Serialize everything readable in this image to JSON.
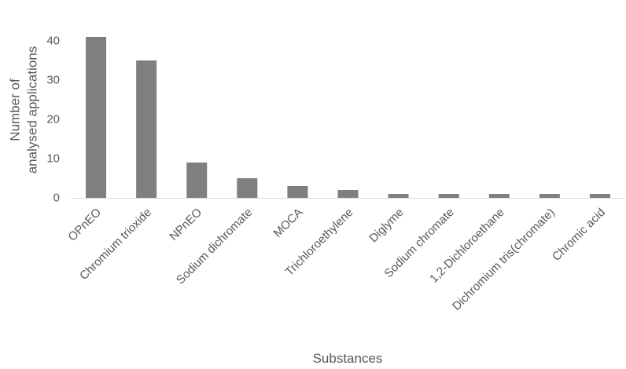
{
  "chart_data": {
    "type": "bar",
    "title": "",
    "xlabel": "Substances",
    "ylabel_lines": [
      "Number of",
      "analysed applications"
    ],
    "categories": [
      "OPnEO",
      "Chromium trioxide",
      "NPnEO",
      "Sodium dichromate",
      "MOCA",
      "Trichloroethylene",
      "Diglyme",
      "Sodium chromate",
      "1,2-Dichloroethane",
      "Dichromium tris(chromate)",
      "Chromic acid"
    ],
    "values": [
      41,
      35,
      9,
      5,
      3,
      2,
      1,
      1,
      1,
      1,
      1
    ],
    "ylim": [
      0,
      45
    ],
    "yticks": [
      0,
      10,
      20,
      30,
      40
    ],
    "grid": false,
    "legend": "none",
    "bar_color": "#7f7f7f",
    "axis_color": "#d9d9d9"
  }
}
